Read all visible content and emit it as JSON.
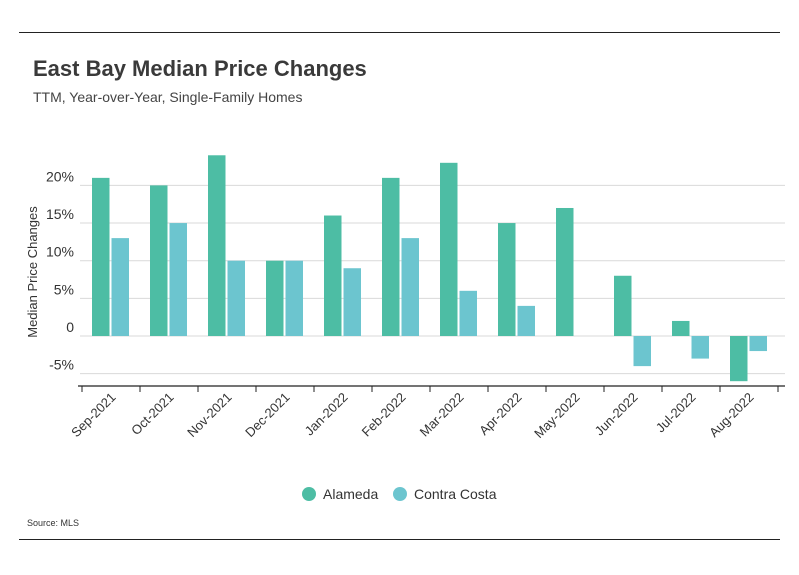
{
  "title": "East Bay Median Price Changes",
  "subtitle": "TTM, Year-over-Year, Single-Family Homes",
  "source": "Source:  MLS",
  "chart_data": {
    "type": "bar",
    "ylabel": "Median Price Changes",
    "xlabel": "",
    "ylim": [
      -6.5,
      24
    ],
    "yticks": [
      20,
      15,
      10,
      5,
      0,
      -5
    ],
    "ytick_labels": [
      "20%",
      "15%",
      "10%",
      "5%",
      "0",
      "-5%"
    ],
    "grid": true,
    "legend_position": "bottom-center",
    "categories": [
      "Sep-2021",
      "Oct-2021",
      "Nov-2021",
      "Dec-2021",
      "Jan-2022",
      "Feb-2022",
      "Mar-2022",
      "Apr-2022",
      "May-2022",
      "Jun-2022",
      "Jul-2022",
      "Aug-2022"
    ],
    "series": [
      {
        "name": "Alameda",
        "color": "#4dbda4",
        "values": [
          21,
          20,
          24,
          10,
          16,
          21,
          23,
          15,
          17,
          8,
          2,
          -6
        ]
      },
      {
        "name": "Contra Costa",
        "color": "#6cc5cf",
        "values": [
          13,
          15,
          10,
          10,
          9,
          13,
          6,
          4,
          0,
          -4,
          -3,
          -2
        ]
      }
    ]
  }
}
